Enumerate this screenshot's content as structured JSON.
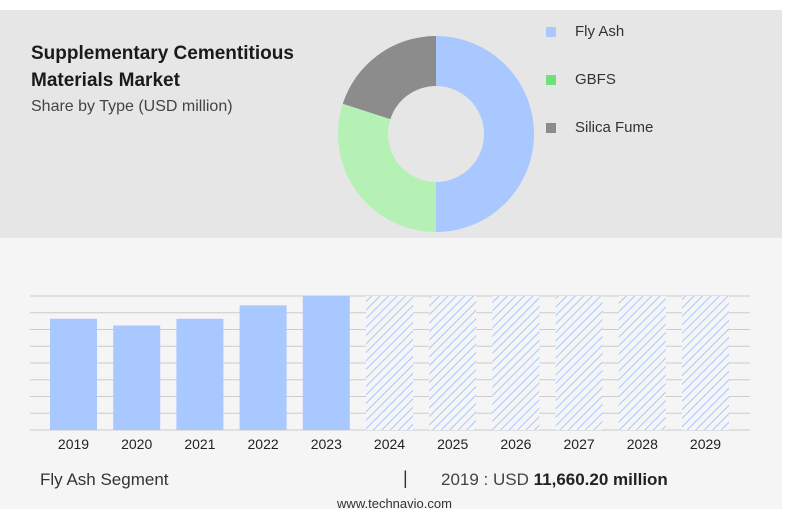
{
  "header": {
    "title": "Supplementary Cementitious Materials Market",
    "subtitle": "Share by Type (USD million)"
  },
  "colors": {
    "fly_ash": "#a8c8ff",
    "gbfs": "#b5f0b5",
    "silica_fume": "#8c8c8c",
    "legend_gbfs": "#6fe07a",
    "forecast_hatch": "#a8c8ff"
  },
  "chart_data": [
    {
      "type": "pie",
      "style": "donut",
      "legend_position": "right",
      "legend": [
        "Fly Ash",
        "GBFS",
        "Silica Fume"
      ],
      "slices": [
        {
          "name": "Fly Ash",
          "value": 50,
          "color": "#a8c8ff"
        },
        {
          "name": "GBFS",
          "value": 30,
          "color": "#b5f0b5"
        },
        {
          "name": "Silica Fume",
          "value": 20,
          "color": "#8c8c8c"
        }
      ]
    },
    {
      "type": "bar",
      "categories": [
        "2019",
        "2020",
        "2021",
        "2022",
        "2023",
        "2024",
        "2025",
        "2026",
        "2027",
        "2028",
        "2029"
      ],
      "values": [
        83,
        78,
        83,
        93,
        100,
        100,
        100,
        100,
        100,
        100,
        100
      ],
      "forecast_from": "2024",
      "grid": true,
      "ylim": [
        0,
        100
      ]
    }
  ],
  "footer": {
    "segment_label": "Fly Ash Segment",
    "separator": "|",
    "value_prefix": "2019 : USD",
    "value_amount": "11,660.20 million",
    "source": "www.technavio.com"
  }
}
